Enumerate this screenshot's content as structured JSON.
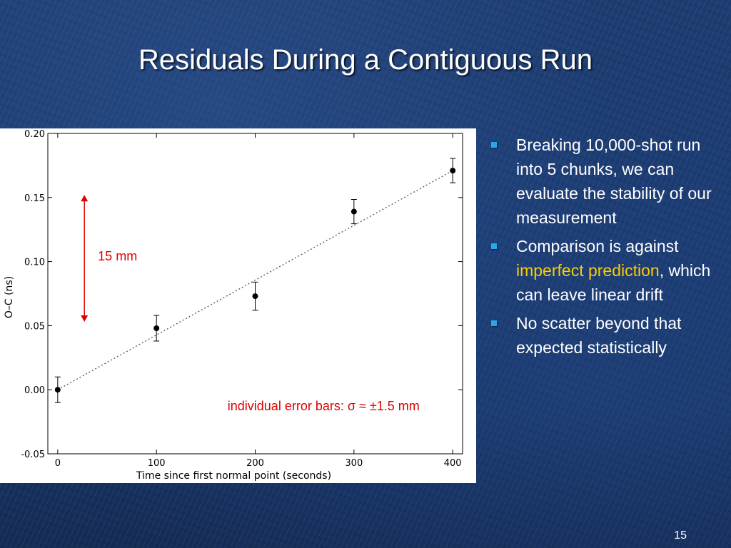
{
  "slide": {
    "title": "Residuals During a Contiguous Run",
    "page_number": "15",
    "bullets": [
      {
        "parts": [
          {
            "text": "Breaking 10,000-shot run into 5 chunks, we can evaluate the stability of our measurement",
            "highlight": false
          }
        ]
      },
      {
        "parts": [
          {
            "text": "Comparison is against ",
            "highlight": false
          },
          {
            "text": "imperfect prediction",
            "highlight": true
          },
          {
            "text": ", which can leave linear drift",
            "highlight": false
          }
        ]
      },
      {
        "parts": [
          {
            "text": "No scatter beyond that expected statistically",
            "highlight": false
          }
        ]
      }
    ]
  },
  "colors": {
    "background": "#1a3a70",
    "title": "#ffffff",
    "bullet_marker": "#2aa7e8",
    "highlight": "#ffcc00",
    "annotation": "#dd0000"
  },
  "chart_data": {
    "type": "scatter",
    "title": "",
    "xlabel": "Time since first normal point (seconds)",
    "ylabel": "O–C (ns)",
    "xlim": [
      -10,
      410
    ],
    "ylim": [
      -0.05,
      0.2
    ],
    "x_ticks": [
      0,
      100,
      200,
      300,
      400
    ],
    "y_ticks": [
      -0.05,
      0.0,
      0.05,
      0.1,
      0.15,
      0.2
    ],
    "x_tick_labels": [
      "0",
      "100",
      "200",
      "300",
      "400"
    ],
    "y_tick_labels": [
      "-0.05",
      "0.00",
      "0.05",
      "0.10",
      "0.15",
      "0.20"
    ],
    "grid": false,
    "series": [
      {
        "x": [
          0,
          100,
          200,
          300,
          400
        ],
        "y": [
          0.0,
          0.048,
          0.073,
          0.139,
          0.171
        ],
        "yerr": [
          0.01,
          0.01,
          0.011,
          0.0095,
          0.0095
        ],
        "marker": "circle",
        "color": "#000000"
      }
    ],
    "fit_line": {
      "x": [
        0,
        400
      ],
      "y": [
        0.0,
        0.171
      ],
      "style": "dotted",
      "color": "#555555"
    },
    "annotations": [
      {
        "type": "double-arrow",
        "x": 27,
        "y_start": 0.152,
        "y_end": 0.053,
        "label": "15 mm",
        "color": "#dd0000"
      },
      {
        "type": "text",
        "label": "individual error bars: σ ≈ ±1.5 mm",
        "x": 172,
        "y": -0.016,
        "color": "#dd0000"
      }
    ]
  }
}
